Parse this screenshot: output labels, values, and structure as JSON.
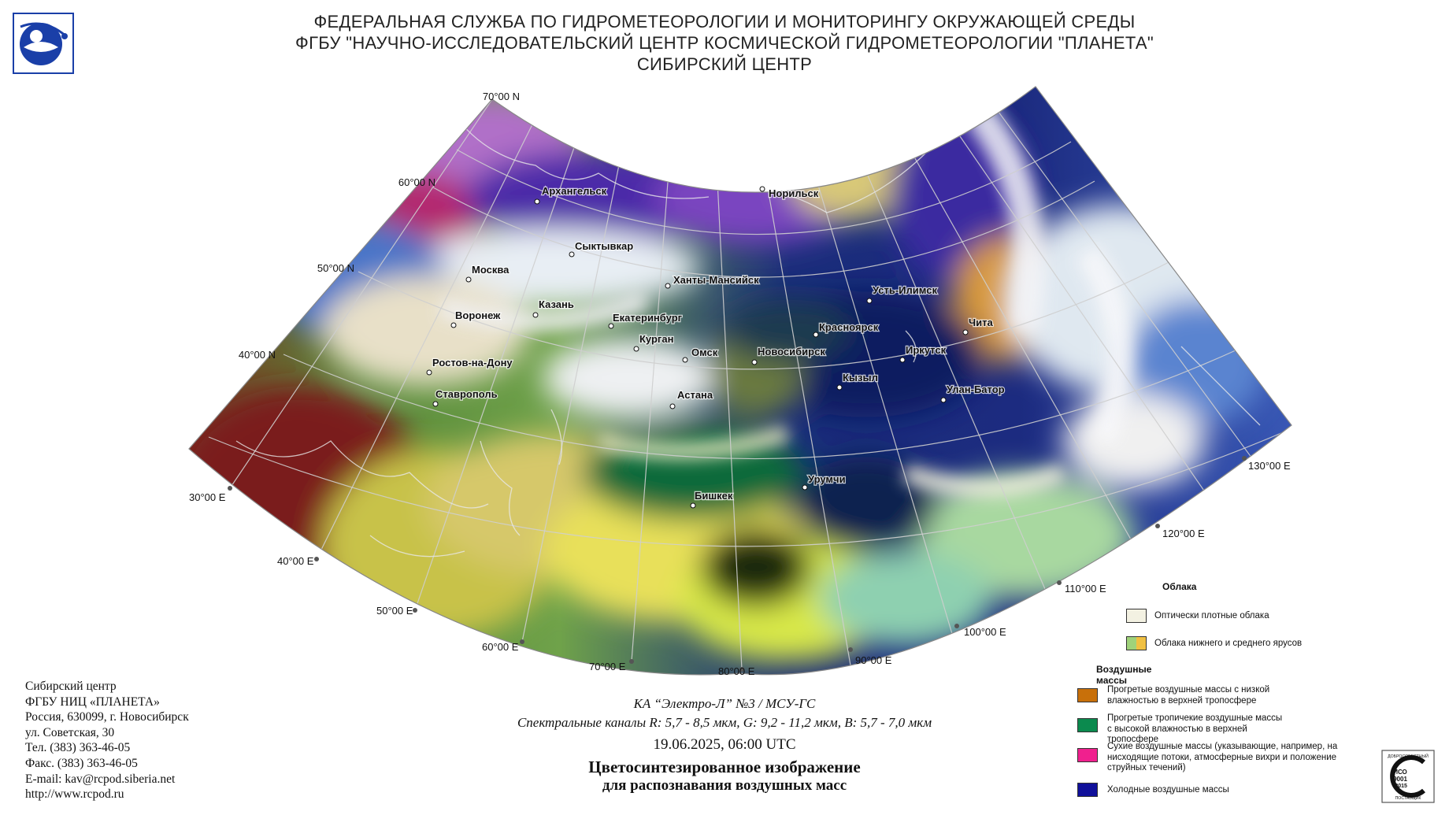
{
  "header": {
    "line1": "ФЕДЕРАЛЬНАЯ СЛУЖБА ПО ГИДРОМЕТЕОРОЛОГИИ И МОНИТОРИНГУ ОКРУЖАЮЩЕЙ СРЕДЫ",
    "line2": "ФГБУ \"НАУЧНО-ИССЛЕДОВАТЕЛЬСКИЙ ЦЕНТР КОСМИЧЕСКОЙ ГИДРОМЕТЕОРОЛОГИИ \"ПЛАНЕТА\"",
    "line3": "СИБИРСКИЙ ЦЕНТР"
  },
  "logo": {
    "icon": "roshydromet-logo-icon",
    "color": "#1a3fa8"
  },
  "map": {
    "latitudes": [
      "70°00 N",
      "60°00 N",
      "50°00 N",
      "40°00 N"
    ],
    "longitudes": [
      "30°00 E",
      "40°00 E",
      "50°00 E",
      "60°00 E",
      "70°00 E",
      "80°00 E",
      "90°00 E",
      "100°00 E",
      "110°00 E",
      "120°00 E",
      "130°00 E"
    ],
    "cities": [
      {
        "name": "Архангельск"
      },
      {
        "name": "Норильск"
      },
      {
        "name": "Сыктывкар"
      },
      {
        "name": "Москва"
      },
      {
        "name": "Ханты-Мансийск"
      },
      {
        "name": "Казань"
      },
      {
        "name": "Усть-Илимск"
      },
      {
        "name": "Воронеж"
      },
      {
        "name": "Екатеринбург"
      },
      {
        "name": "Чита"
      },
      {
        "name": "Красноярск"
      },
      {
        "name": "Курган"
      },
      {
        "name": "Омск"
      },
      {
        "name": "Новосибирск"
      },
      {
        "name": "Иркутск"
      },
      {
        "name": "Ростов-на-Дону"
      },
      {
        "name": "Кызыл"
      },
      {
        "name": "Улан-Батор"
      },
      {
        "name": "Ставрополь"
      },
      {
        "name": "Астана"
      },
      {
        "name": "Урумчи"
      },
      {
        "name": "Бишкек"
      }
    ]
  },
  "address": [
    "Сибирский центр",
    "ФГБУ НИЦ «ПЛАНЕТА»",
    "Россия, 630099, г. Новосибирск",
    "ул. Советская, 30",
    "Тел. (383) 363-46-05",
    "Факс. (383) 363-46-05",
    "E-mail: kav@rcpod.siberia.net",
    "http://www.rcpod.ru"
  ],
  "caption": {
    "satellite": "КА “Электро-Л” №3 / МСУ-ГС",
    "channels": "Спектральные каналы R: 5,7 - 8,5 мкм, G: 9,2 - 11,2 мкм, B: 5,7 - 7,0 мкм",
    "datetime": "19.06.2025, 06:00 UTC",
    "title1": "Цветосинтезированное изображение",
    "title2": "для распознавания воздушных масс"
  },
  "legend": {
    "clouds_heading": "Облака",
    "clouds": [
      {
        "label": "Оптически плотные облака",
        "color": "#f3f1e2"
      },
      {
        "label": "Облака нижнего и среднего ярусов",
        "colors": [
          "#9fd27a",
          "#f0c042"
        ]
      }
    ],
    "airmasses_heading": "Воздушные массы",
    "airmasses": [
      {
        "label": "Прогретые воздушные массы с низкой влажностью в верхней тропосфере",
        "color": "#c8700a"
      },
      {
        "label": "Прогретые тропичекие воздушные массы с высокой влажностью в верхней тропосфере",
        "color": "#0b8a4e"
      },
      {
        "label": "Сухие воздушные массы (указывающие, например, на нисходящие потоки, атмосферные вихри и положение струйных течений)",
        "color": "#f0208e"
      },
      {
        "label": "Холодные воздушные массы",
        "color": "#10109a"
      }
    ]
  },
  "certification": {
    "icon": "iso-certification-seal-icon",
    "lines": [
      "ДОБРОСОВЕСТНЫЙ",
      "ИСО",
      "9001",
      "-2015",
      "ПОСТАВЩИК"
    ]
  }
}
